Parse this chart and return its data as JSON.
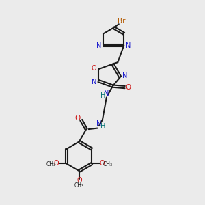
{
  "bg_color": "#ebebeb",
  "bond_color": "#1a1a1a",
  "N_color": "#1414cc",
  "O_color": "#cc1414",
  "Br_color": "#b35900",
  "NH_color": "#007070",
  "figsize": [
    3.0,
    3.0
  ],
  "dpi": 100,
  "xlim": [
    0,
    10
  ],
  "ylim": [
    0,
    10
  ]
}
